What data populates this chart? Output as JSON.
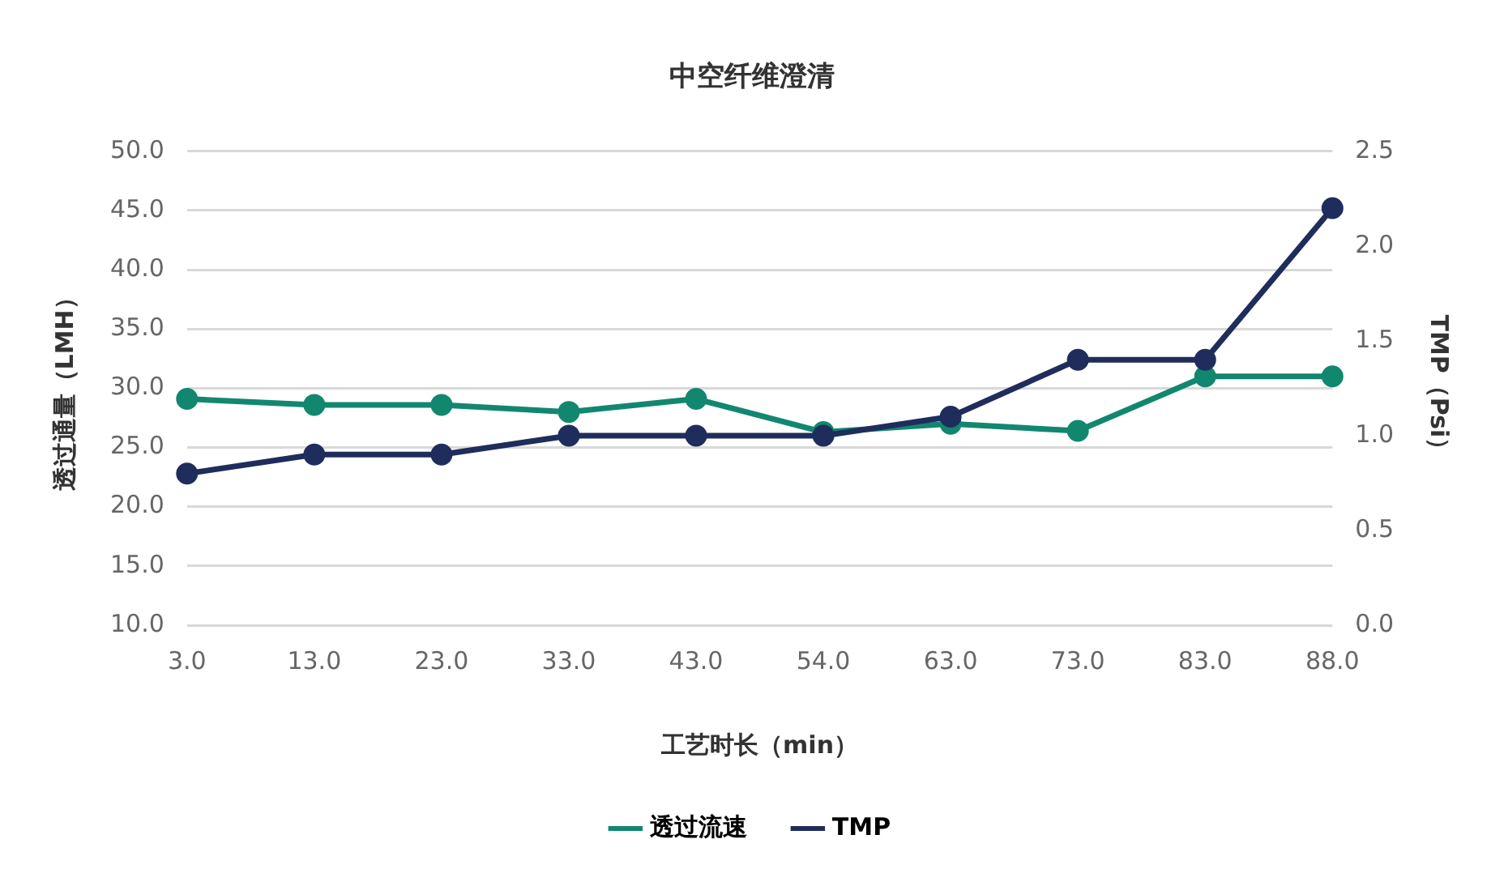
{
  "chart_data": {
    "type": "line",
    "title": "中空纤维澄清",
    "xlabel": "工艺时长（min）",
    "ylabel": "透过通量（LMH）",
    "y2label": "TMP（Psi）",
    "categories": [
      "3.0",
      "13.0",
      "23.0",
      "33.0",
      "43.0",
      "54.0",
      "63.0",
      "73.0",
      "83.0",
      "88.0"
    ],
    "series": [
      {
        "name": "透过流速",
        "color": "#12876f",
        "values": [
          29.1,
          28.6,
          28.6,
          28.0,
          29.1,
          26.3,
          27.0,
          26.4,
          31.0,
          31.0
        ]
      },
      {
        "name": "TMP",
        "color": "#1f2d5c",
        "axis": "y2",
        "values": [
          0.8,
          0.9,
          0.9,
          1.0,
          1.0,
          1.0,
          1.1,
          1.4,
          1.4,
          2.2
        ]
      }
    ],
    "ylim": [
      10,
      50
    ],
    "yticks": [
      {
        "value": 10,
        "label": "10.0"
      },
      {
        "value": 15,
        "label": "15.0"
      },
      {
        "value": 20,
        "label": "20.0"
      },
      {
        "value": 25,
        "label": "25.0"
      },
      {
        "value": 30,
        "label": "30.0"
      },
      {
        "value": 35,
        "label": "35.0"
      },
      {
        "value": 40,
        "label": "40.0"
      },
      {
        "value": 45,
        "label": "45.0"
      },
      {
        "value": 50,
        "label": "50.0"
      }
    ],
    "y2lim": [
      0,
      2.5
    ],
    "y2ticks": [
      {
        "value": 0,
        "label": "0.0"
      },
      {
        "value": 0.5,
        "label": "0.5"
      },
      {
        "value": 1,
        "label": "1.0"
      },
      {
        "value": 1.5,
        "label": "1.5"
      },
      {
        "value": 2,
        "label": "2.0"
      },
      {
        "value": 2.5,
        "label": "2.5"
      }
    ],
    "grid": "y",
    "legend": "bottom",
    "marker": "circle",
    "line_style": "solid"
  }
}
